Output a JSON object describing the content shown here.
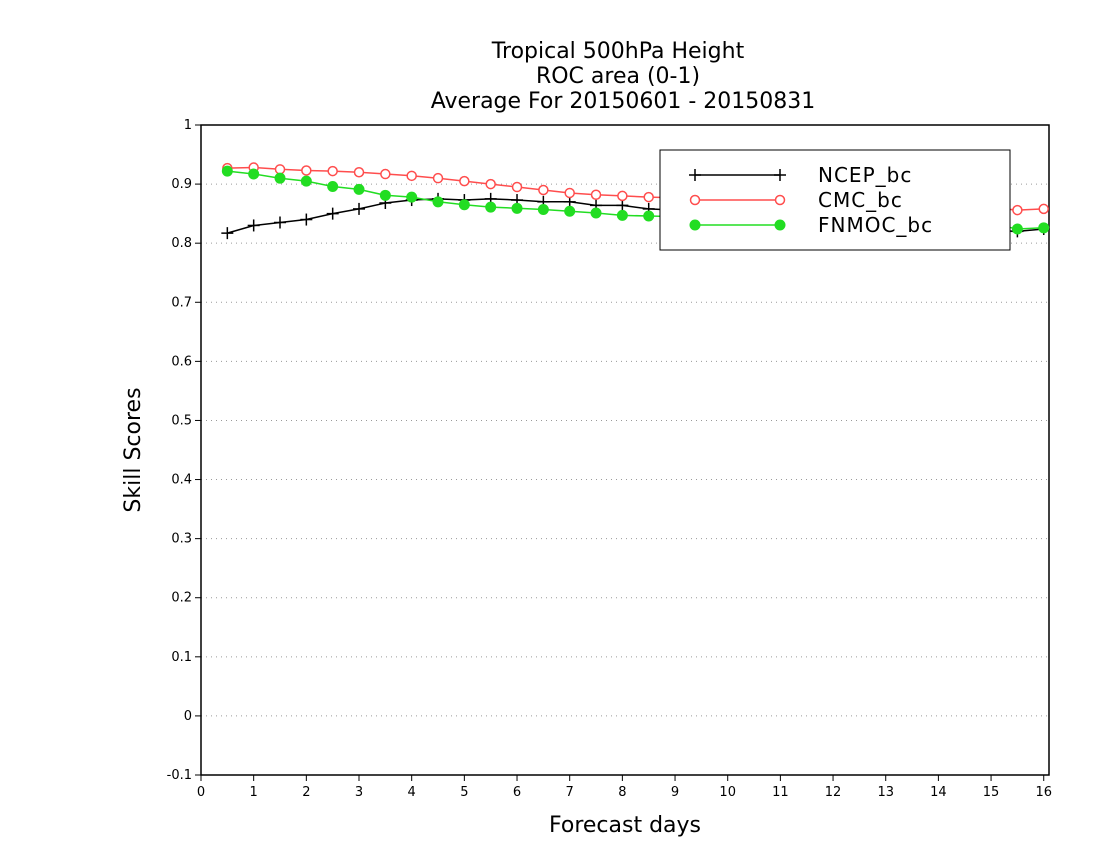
{
  "chart_data": {
    "type": "line",
    "title_lines": [
      "Tropical 500hPa Height",
      "ROC area (0-1)",
      "Average For 20150601 - 20150831"
    ],
    "xlabel": "Forecast days",
    "ylabel": "Skill Scores",
    "xlim": [
      0,
      16.1
    ],
    "ylim": [
      -0.1,
      1
    ],
    "xticks": [
      0,
      1,
      2,
      3,
      4,
      5,
      6,
      7,
      8,
      9,
      10,
      11,
      12,
      13,
      14,
      15,
      16
    ],
    "yticks": [
      -0.1,
      0,
      0.1,
      0.2,
      0.3,
      0.4,
      0.5,
      0.6,
      0.7,
      0.8,
      0.9,
      1
    ],
    "ytick_labels": [
      "-0.1",
      "0",
      "0.1",
      "0.2",
      "0.3",
      "0.4",
      "0.5",
      "0.6",
      "0.7",
      "0.8",
      "0.9",
      "1"
    ],
    "grid": "horizontal dotted",
    "legend_position": "top-right",
    "x": [
      0.5,
      1.0,
      1.5,
      2.0,
      2.5,
      3.0,
      3.5,
      4.0,
      4.5,
      5.0,
      5.5,
      6.0,
      6.5,
      7.0,
      7.5,
      8.0,
      8.5,
      9.0,
      9.5,
      10.0,
      10.5,
      11.0,
      11.5,
      12.0,
      12.5,
      13.0,
      13.5,
      14.0,
      14.5,
      15.0,
      15.5,
      16.0
    ],
    "series": [
      {
        "name": "NCEP_bc",
        "color": "#000000",
        "marker": "plus",
        "values": [
          0.817,
          0.83,
          0.835,
          0.84,
          0.85,
          0.858,
          0.868,
          0.873,
          0.875,
          0.873,
          0.875,
          0.873,
          0.87,
          0.87,
          0.864,
          0.864,
          0.858,
          0.856,
          0.854,
          0.852,
          0.85,
          0.848,
          0.846,
          0.844,
          0.842,
          0.838,
          0.834,
          0.83,
          0.826,
          0.822,
          0.82,
          0.824
        ]
      },
      {
        "name": "CMC_bc",
        "color": "#ff4d4d",
        "marker": "open-circle",
        "values": [
          0.927,
          0.928,
          0.925,
          0.923,
          0.922,
          0.92,
          0.917,
          0.914,
          0.91,
          0.905,
          0.9,
          0.895,
          0.89,
          0.885,
          0.882,
          0.88,
          0.878,
          0.877,
          0.876,
          0.875,
          0.874,
          0.873,
          0.872,
          0.871,
          0.87,
          0.868,
          0.866,
          0.864,
          0.862,
          0.86,
          0.856,
          0.858
        ]
      },
      {
        "name": "FNMOC_bc",
        "color": "#22dd22",
        "marker": "filled-circle",
        "values": [
          0.922,
          0.917,
          0.91,
          0.905,
          0.896,
          0.891,
          0.881,
          0.878,
          0.87,
          0.865,
          0.861,
          0.859,
          0.857,
          0.854,
          0.851,
          0.847,
          0.846,
          0.845,
          0.844,
          0.843,
          0.842,
          0.841,
          0.84,
          0.839,
          0.838,
          0.837,
          0.836,
          0.835,
          0.834,
          0.833,
          0.824,
          0.826
        ]
      }
    ]
  }
}
